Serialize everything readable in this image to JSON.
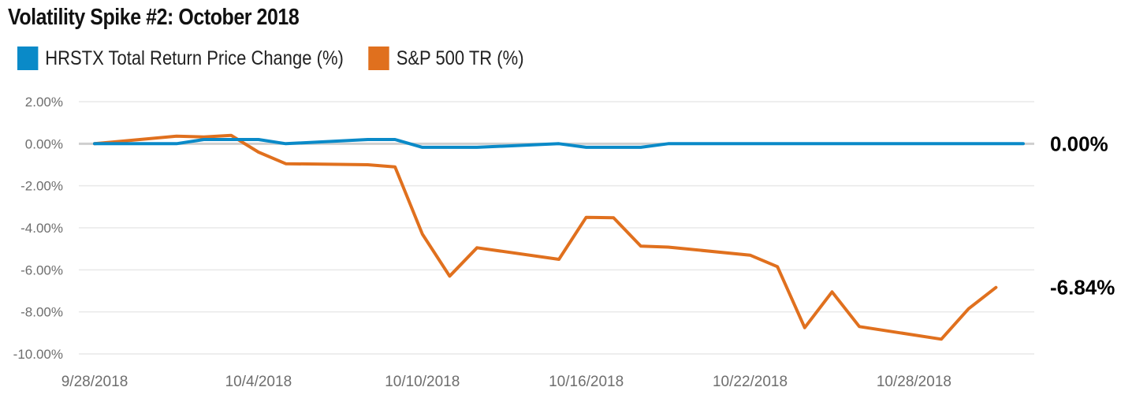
{
  "chart_data": {
    "type": "line",
    "title": "Volatility Spike #2: October 2018",
    "xlabel": "",
    "ylabel": "",
    "ylim": [
      -10,
      2
    ],
    "y_tick_labels": [
      "2.00%",
      "0.00%",
      "-2.00%",
      "-4.00%",
      "-6.00%",
      "-8.00%",
      "-10.00%"
    ],
    "x_tick_labels": [
      "9/28/2018",
      "10/4/2018",
      "10/10/2018",
      "10/16/2018",
      "10/22/2018",
      "10/28/2018"
    ],
    "x_range": [
      "2018-09-28",
      "2018-11-01"
    ],
    "grid": true,
    "legend_position": "top-left",
    "series": [
      {
        "name": "HRSTX Total Return Price Change (%)",
        "color": "#0a8ac8",
        "end_label": "0.00%",
        "points": [
          [
            "2018-09-28",
            0.0
          ],
          [
            "2018-10-01",
            0.0
          ],
          [
            "2018-10-02",
            0.2
          ],
          [
            "2018-10-03",
            0.2
          ],
          [
            "2018-10-04",
            0.2
          ],
          [
            "2018-10-05",
            0.0
          ],
          [
            "2018-10-08",
            0.2
          ],
          [
            "2018-10-09",
            0.2
          ],
          [
            "2018-10-10",
            -0.17
          ],
          [
            "2018-10-11",
            -0.17
          ],
          [
            "2018-10-12",
            -0.17
          ],
          [
            "2018-10-15",
            0.0
          ],
          [
            "2018-10-16",
            -0.17
          ],
          [
            "2018-10-17",
            -0.17
          ],
          [
            "2018-10-18",
            -0.17
          ],
          [
            "2018-10-19",
            0.0
          ],
          [
            "2018-10-22",
            0.0
          ],
          [
            "2018-10-23",
            0.0
          ],
          [
            "2018-10-24",
            0.0
          ],
          [
            "2018-10-25",
            0.0
          ],
          [
            "2018-10-26",
            0.0
          ],
          [
            "2018-10-29",
            0.0
          ],
          [
            "2018-10-30",
            0.0
          ],
          [
            "2018-10-31",
            0.0
          ],
          [
            "2018-11-01",
            0.0
          ]
        ]
      },
      {
        "name": "S&P 500 TR (%)",
        "color": "#e0701e",
        "end_label": "-6.84%",
        "points": [
          [
            "2018-09-28",
            0.0
          ],
          [
            "2018-10-01",
            0.36
          ],
          [
            "2018-10-02",
            0.32
          ],
          [
            "2018-10-03",
            0.4
          ],
          [
            "2018-10-04",
            -0.4
          ],
          [
            "2018-10-05",
            -0.95
          ],
          [
            "2018-10-08",
            -1.0
          ],
          [
            "2018-10-09",
            -1.1
          ],
          [
            "2018-10-10",
            -4.3
          ],
          [
            "2018-10-11",
            -6.3
          ],
          [
            "2018-10-12",
            -4.95
          ],
          [
            "2018-10-15",
            -5.5
          ],
          [
            "2018-10-16",
            -3.5
          ],
          [
            "2018-10-17",
            -3.52
          ],
          [
            "2018-10-18",
            -4.87
          ],
          [
            "2018-10-19",
            -4.92
          ],
          [
            "2018-10-22",
            -5.3
          ],
          [
            "2018-10-23",
            -5.85
          ],
          [
            "2018-10-24",
            -8.75
          ],
          [
            "2018-10-25",
            -7.05
          ],
          [
            "2018-10-26",
            -8.7
          ],
          [
            "2018-10-29",
            -9.3
          ],
          [
            "2018-10-30",
            -7.85
          ],
          [
            "2018-10-31",
            -6.84
          ]
        ]
      }
    ]
  }
}
